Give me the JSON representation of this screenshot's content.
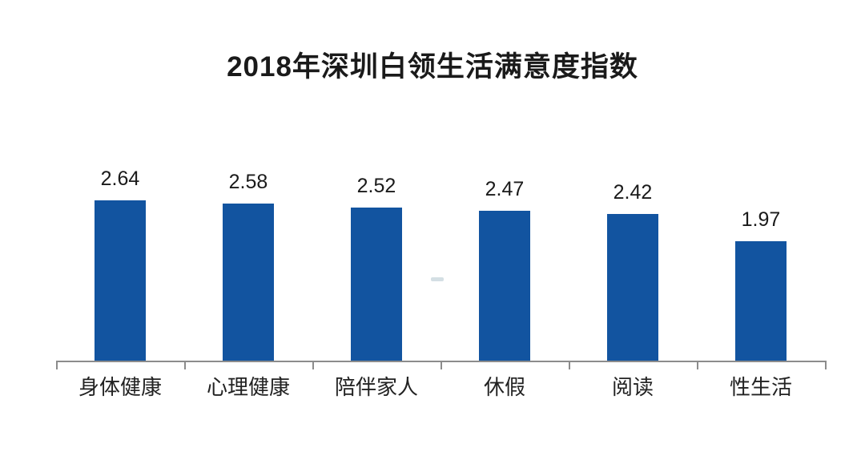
{
  "chart_data": {
    "type": "bar",
    "title": "2018年深圳白领生活满意度指数",
    "categories": [
      "身体健康",
      "心理健康",
      "陪伴家人",
      "休假",
      "阅读",
      "性生活"
    ],
    "values": [
      2.64,
      2.58,
      2.52,
      2.47,
      2.42,
      1.97
    ],
    "value_labels": [
      "2.64",
      "2.58",
      "2.52",
      "2.47",
      "2.42",
      "1.97"
    ],
    "xlabel": "",
    "ylabel": "",
    "ylim": [
      0,
      3
    ],
    "grid": false,
    "legend": "none",
    "value_labels_shown": true,
    "bar_color": "#1254a0",
    "axis_color": "#8c8c8c",
    "title_color": "#1a1a1a",
    "label_color": "#222222",
    "background_color": "#ffffff"
  }
}
